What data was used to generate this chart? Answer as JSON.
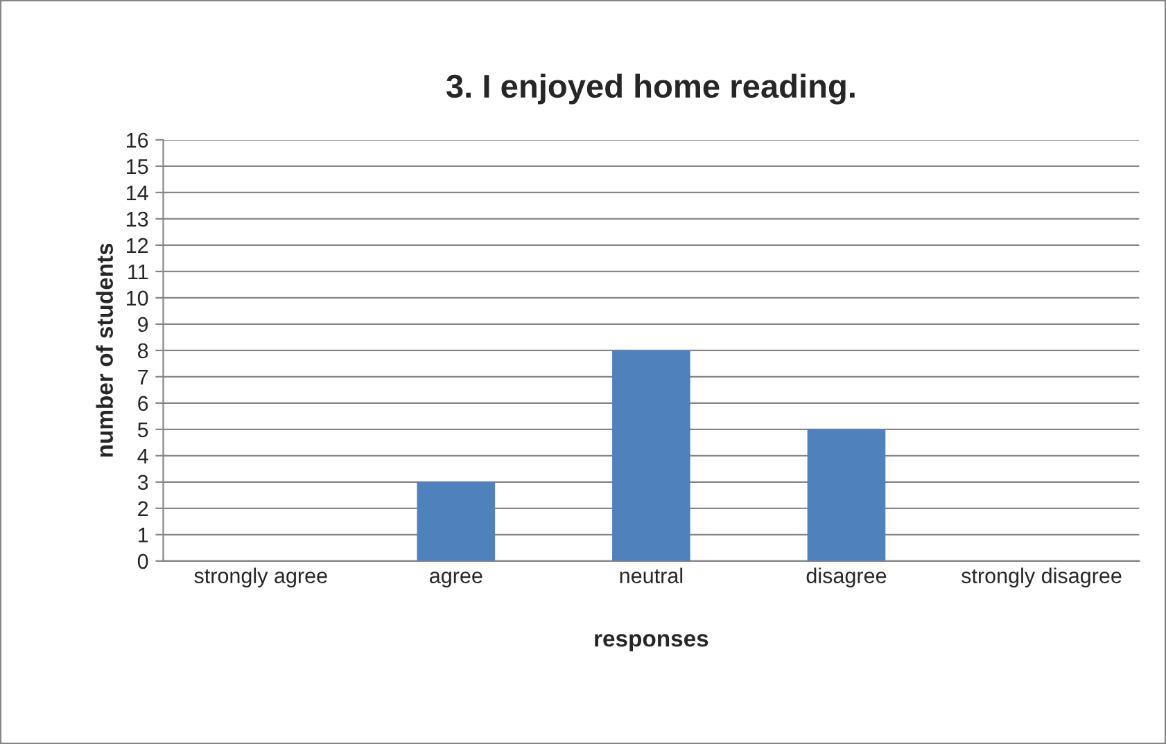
{
  "chart_data": {
    "type": "bar",
    "title": "3. I enjoyed home reading.",
    "xlabel": "responses",
    "ylabel": "number of students",
    "categories": [
      "strongly agree",
      "agree",
      "neutral",
      "disagree",
      "strongly disagree"
    ],
    "values": [
      0,
      3,
      8,
      5,
      0
    ],
    "color": "#4f81bd",
    "ylim": [
      0,
      16
    ],
    "yticks": [
      0,
      1,
      2,
      3,
      4,
      5,
      6,
      7,
      8,
      9,
      10,
      11,
      12,
      13,
      14,
      15,
      16
    ],
    "grid": "y"
  }
}
